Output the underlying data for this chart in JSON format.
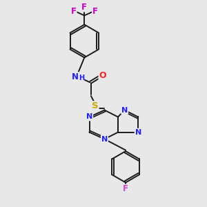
{
  "bg_color": "#e8e8e8",
  "bond_color": "#1a1a1a",
  "atom_colors": {
    "N": "#2020ff",
    "O": "#ff2020",
    "S": "#ccaa00",
    "F_top": "#cc00cc",
    "F_bottom": "#cc44cc",
    "H": "#2020ff"
  },
  "lw": 1.4,
  "figsize": [
    3.0,
    3.0
  ],
  "dpi": 100,
  "xlim": [
    0,
    10
  ],
  "ylim": [
    0,
    10
  ]
}
